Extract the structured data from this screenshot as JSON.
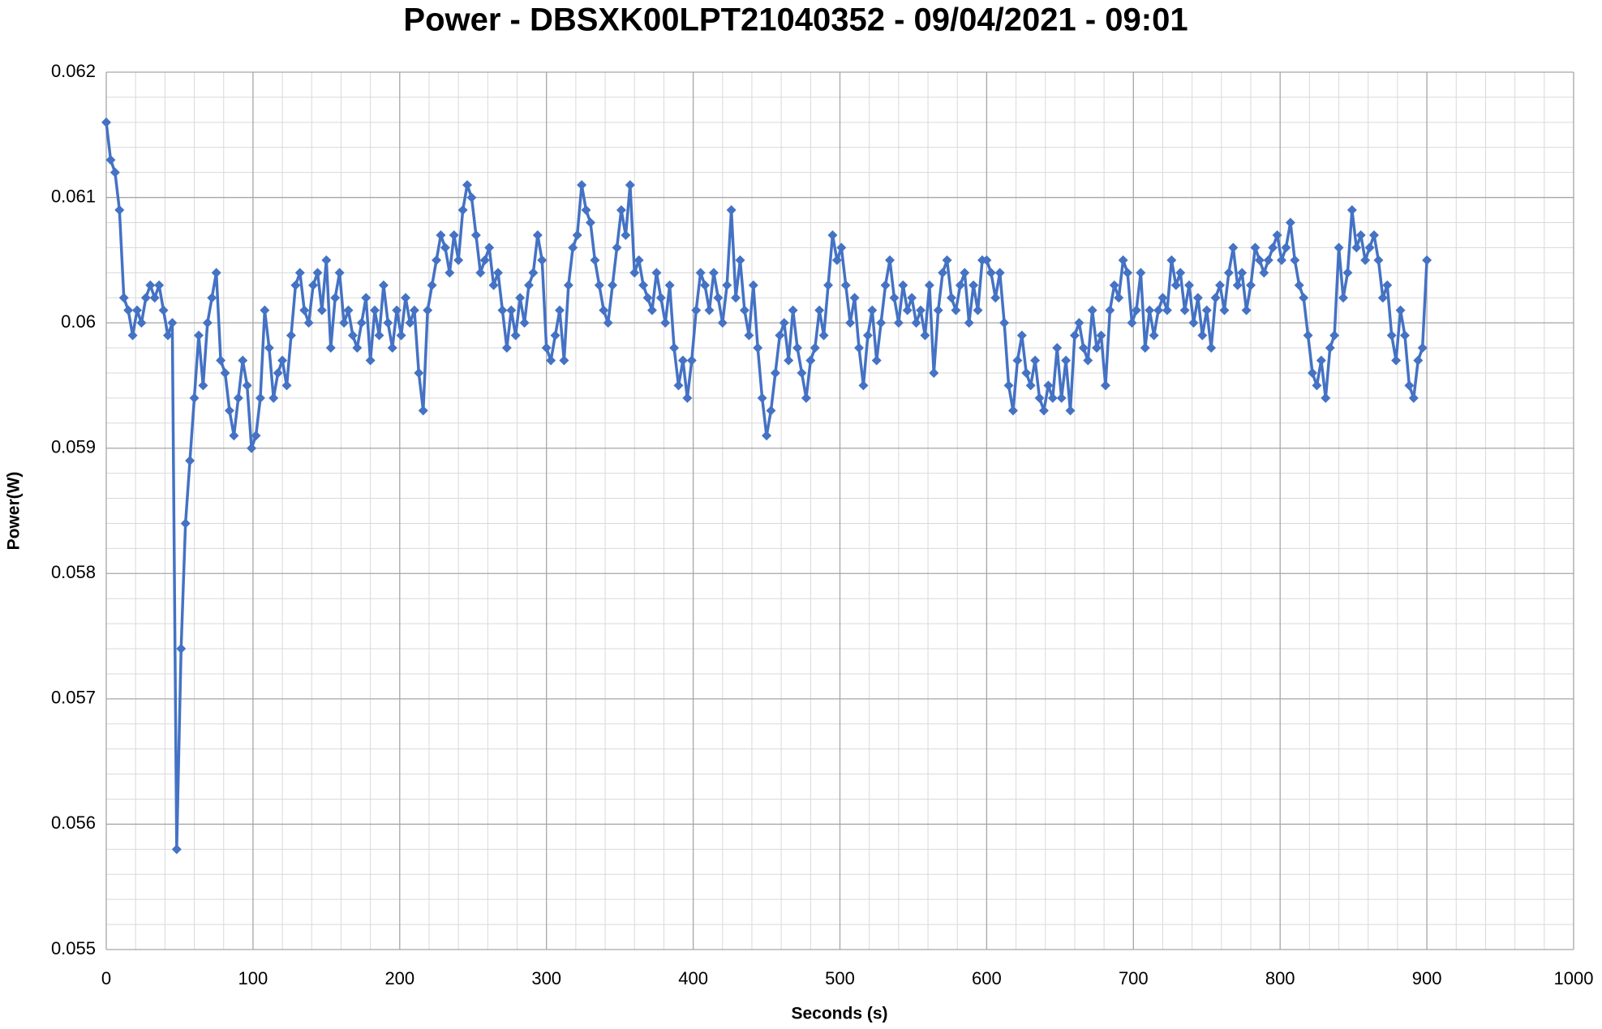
{
  "chart_data": {
    "type": "line",
    "title": "Power - DBSXK00LPT21040352 - 09/04/2021 - 09:01",
    "x_label": "Seconds (s)",
    "y_label": "Power(W)",
    "color": "#4472c4",
    "marker": "diamond",
    "xlim": [
      0,
      1000
    ],
    "xticks": [
      0,
      100,
      200,
      300,
      400,
      500,
      600,
      700,
      800,
      900,
      1000
    ],
    "ylim": [
      0.055,
      0.062
    ],
    "yticks": [
      0.055,
      0.056,
      0.057,
      0.058,
      0.059,
      0.06,
      0.061,
      0.062
    ],
    "grid": true,
    "minor_grid": true,
    "x": [
      0,
      3,
      6,
      9,
      12,
      15,
      18,
      21,
      24,
      27,
      30,
      33,
      36,
      39,
      42,
      45,
      48,
      51,
      54,
      57,
      60,
      63,
      66,
      69,
      72,
      75,
      78,
      81,
      84,
      87,
      90,
      93,
      96,
      99,
      102,
      105,
      108,
      111,
      114,
      117,
      120,
      123,
      126,
      129,
      132,
      135,
      138,
      141,
      144,
      147,
      150,
      153,
      156,
      159,
      162,
      165,
      168,
      171,
      174,
      177,
      180,
      183,
      186,
      189,
      192,
      195,
      198,
      201,
      204,
      207,
      210,
      213,
      216,
      219,
      222,
      225,
      228,
      231,
      234,
      237,
      240,
      243,
      246,
      249,
      252,
      255,
      258,
      261,
      264,
      267,
      270,
      273,
      276,
      279,
      282,
      285,
      288,
      291,
      294,
      297,
      300,
      303,
      306,
      309,
      312,
      315,
      318,
      321,
      324,
      327,
      330,
      333,
      336,
      339,
      342,
      345,
      348,
      351,
      354,
      357,
      360,
      363,
      366,
      369,
      372,
      375,
      378,
      381,
      384,
      387,
      390,
      393,
      396,
      399,
      402,
      405,
      408,
      411,
      414,
      417,
      420,
      423,
      426,
      429,
      432,
      435,
      438,
      441,
      444,
      447,
      450,
      453,
      456,
      459,
      462,
      465,
      468,
      471,
      474,
      477,
      480,
      483,
      486,
      489,
      492,
      495,
      498,
      501,
      504,
      507,
      510,
      513,
      516,
      519,
      522,
      525,
      528,
      531,
      534,
      537,
      540,
      543,
      546,
      549,
      552,
      555,
      558,
      561,
      564,
      567,
      570,
      573,
      576,
      579,
      582,
      585,
      588,
      591,
      594,
      597,
      600,
      603,
      606,
      609,
      612,
      615,
      618,
      621,
      624,
      627,
      630,
      633,
      636,
      639,
      642,
      645,
      648,
      651,
      654,
      657,
      660,
      663,
      666,
      669,
      672,
      675,
      678,
      681,
      684,
      687,
      690,
      693,
      696,
      699,
      702,
      705,
      708,
      711,
      714,
      717,
      720,
      723,
      726,
      729,
      732,
      735,
      738,
      741,
      744,
      747,
      750,
      753,
      756,
      759,
      762,
      765,
      768,
      771,
      774,
      777,
      780,
      783,
      786,
      789,
      792,
      795,
      798,
      801,
      804,
      807,
      810,
      813,
      816,
      819,
      822,
      825,
      828,
      831,
      834,
      837,
      840,
      843,
      846,
      849,
      852,
      855,
      858,
      861,
      864,
      867,
      870,
      873,
      876,
      879,
      882,
      885,
      888,
      891,
      894,
      897,
      900
    ],
    "values": [
      0.0616,
      0.0613,
      0.0612,
      0.0609,
      0.0602,
      0.0601,
      0.0599,
      0.0601,
      0.06,
      0.0602,
      0.0603,
      0.0602,
      0.0603,
      0.0601,
      0.0599,
      0.06,
      0.0558,
      0.0574,
      0.0584,
      0.0589,
      0.0594,
      0.0599,
      0.0595,
      0.06,
      0.0602,
      0.0604,
      0.0597,
      0.0596,
      0.0593,
      0.0591,
      0.0594,
      0.0597,
      0.0595,
      0.059,
      0.0591,
      0.0594,
      0.0601,
      0.0598,
      0.0594,
      0.0596,
      0.0597,
      0.0595,
      0.0599,
      0.0603,
      0.0604,
      0.0601,
      0.06,
      0.0603,
      0.0604,
      0.0601,
      0.0605,
      0.0598,
      0.0602,
      0.0604,
      0.06,
      0.0601,
      0.0599,
      0.0598,
      0.06,
      0.0602,
      0.0597,
      0.0601,
      0.0599,
      0.0603,
      0.06,
      0.0598,
      0.0601,
      0.0599,
      0.0602,
      0.06,
      0.0601,
      0.0596,
      0.0593,
      0.0601,
      0.0603,
      0.0605,
      0.0607,
      0.0606,
      0.0604,
      0.0607,
      0.0605,
      0.0609,
      0.0611,
      0.061,
      0.0607,
      0.0604,
      0.0605,
      0.0606,
      0.0603,
      0.0604,
      0.0601,
      0.0598,
      0.0601,
      0.0599,
      0.0602,
      0.06,
      0.0603,
      0.0604,
      0.0607,
      0.0605,
      0.0598,
      0.0597,
      0.0599,
      0.0601,
      0.0597,
      0.0603,
      0.0606,
      0.0607,
      0.0611,
      0.0609,
      0.0608,
      0.0605,
      0.0603,
      0.0601,
      0.06,
      0.0603,
      0.0606,
      0.0609,
      0.0607,
      0.0611,
      0.0604,
      0.0605,
      0.0603,
      0.0602,
      0.0601,
      0.0604,
      0.0602,
      0.06,
      0.0603,
      0.0598,
      0.0595,
      0.0597,
      0.0594,
      0.0597,
      0.0601,
      0.0604,
      0.0603,
      0.0601,
      0.0604,
      0.0602,
      0.06,
      0.0603,
      0.0609,
      0.0602,
      0.0605,
      0.0601,
      0.0599,
      0.0603,
      0.0598,
      0.0594,
      0.0591,
      0.0593,
      0.0596,
      0.0599,
      0.06,
      0.0597,
      0.0601,
      0.0598,
      0.0596,
      0.0594,
      0.0597,
      0.0598,
      0.0601,
      0.0599,
      0.0603,
      0.0607,
      0.0605,
      0.0606,
      0.0603,
      0.06,
      0.0602,
      0.0598,
      0.0595,
      0.0599,
      0.0601,
      0.0597,
      0.06,
      0.0603,
      0.0605,
      0.0602,
      0.06,
      0.0603,
      0.0601,
      0.0602,
      0.06,
      0.0601,
      0.0599,
      0.0603,
      0.0596,
      0.0601,
      0.0604,
      0.0605,
      0.0602,
      0.0601,
      0.0603,
      0.0604,
      0.06,
      0.0603,
      0.0601,
      0.0605,
      0.0605,
      0.0604,
      0.0602,
      0.0604,
      0.06,
      0.0595,
      0.0593,
      0.0597,
      0.0599,
      0.0596,
      0.0595,
      0.0597,
      0.0594,
      0.0593,
      0.0595,
      0.0594,
      0.0598,
      0.0594,
      0.0597,
      0.0593,
      0.0599,
      0.06,
      0.0598,
      0.0597,
      0.0601,
      0.0598,
      0.0599,
      0.0595,
      0.0601,
      0.0603,
      0.0602,
      0.0605,
      0.0604,
      0.06,
      0.0601,
      0.0604,
      0.0598,
      0.0601,
      0.0599,
      0.0601,
      0.0602,
      0.0601,
      0.0605,
      0.0603,
      0.0604,
      0.0601,
      0.0603,
      0.06,
      0.0602,
      0.0599,
      0.0601,
      0.0598,
      0.0602,
      0.0603,
      0.0601,
      0.0604,
      0.0606,
      0.0603,
      0.0604,
      0.0601,
      0.0603,
      0.0606,
      0.0605,
      0.0604,
      0.0605,
      0.0606,
      0.0607,
      0.0605,
      0.0606,
      0.0608,
      0.0605,
      0.0603,
      0.0602,
      0.0599,
      0.0596,
      0.0595,
      0.0597,
      0.0594,
      0.0598,
      0.0599,
      0.0606,
      0.0602,
      0.0604,
      0.0609,
      0.0606,
      0.0607,
      0.0605,
      0.0606,
      0.0607,
      0.0605,
      0.0602,
      0.0603,
      0.0599,
      0.0597,
      0.0601,
      0.0599,
      0.0595,
      0.0594,
      0.0597,
      0.0598,
      0.0605
    ]
  }
}
